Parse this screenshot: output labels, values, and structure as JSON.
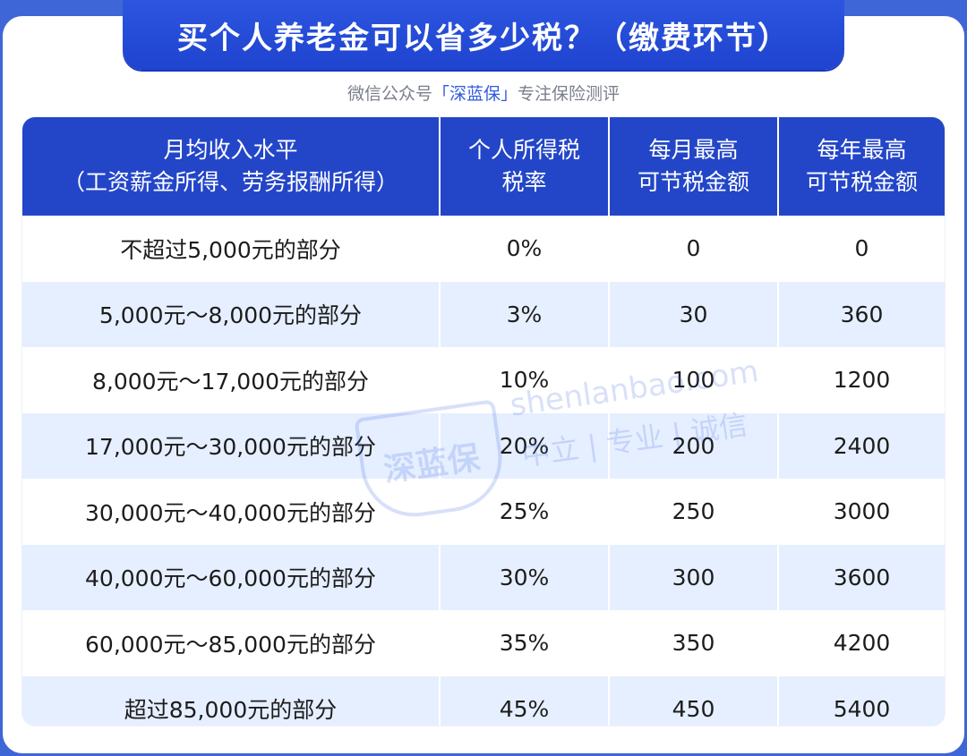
{
  "header": {
    "title": "买个人养老金可以省多少税？（缴费环节）",
    "subtitle_prefix": "微信公众号",
    "subtitle_brand": "「深蓝保」",
    "subtitle_suffix": "专注保险测评"
  },
  "table": {
    "columns": [
      [
        "月均收入水平",
        "（工资薪金所得、劳务报酬所得）"
      ],
      [
        "个人所得税",
        "税率"
      ],
      [
        "每月最高",
        "可节税金额"
      ],
      [
        "每年最高",
        "可节税金额"
      ]
    ],
    "rows": [
      [
        "不超过5,000元的部分",
        "0%",
        "0",
        "0"
      ],
      [
        "5,000元～8,000元的部分",
        "3%",
        "30",
        "360"
      ],
      [
        "8,000元～17,000元的部分",
        "10%",
        "100",
        "1200"
      ],
      [
        "17,000元～30,000元的部分",
        "20%",
        "200",
        "2400"
      ],
      [
        "30,000元～40,000元的部分",
        "25%",
        "250",
        "3000"
      ],
      [
        "40,000元～60,000元的部分",
        "30%",
        "300",
        "3600"
      ],
      [
        "60,000元～85,000元的部分",
        "35%",
        "350",
        "4200"
      ],
      [
        "超过85,000元的部分",
        "45%",
        "450",
        "5400"
      ]
    ]
  },
  "watermark": {
    "logo_text": "深蓝保",
    "url": "shenlanbao.com",
    "slogan": "中立 | 专业 | 诚信"
  }
}
